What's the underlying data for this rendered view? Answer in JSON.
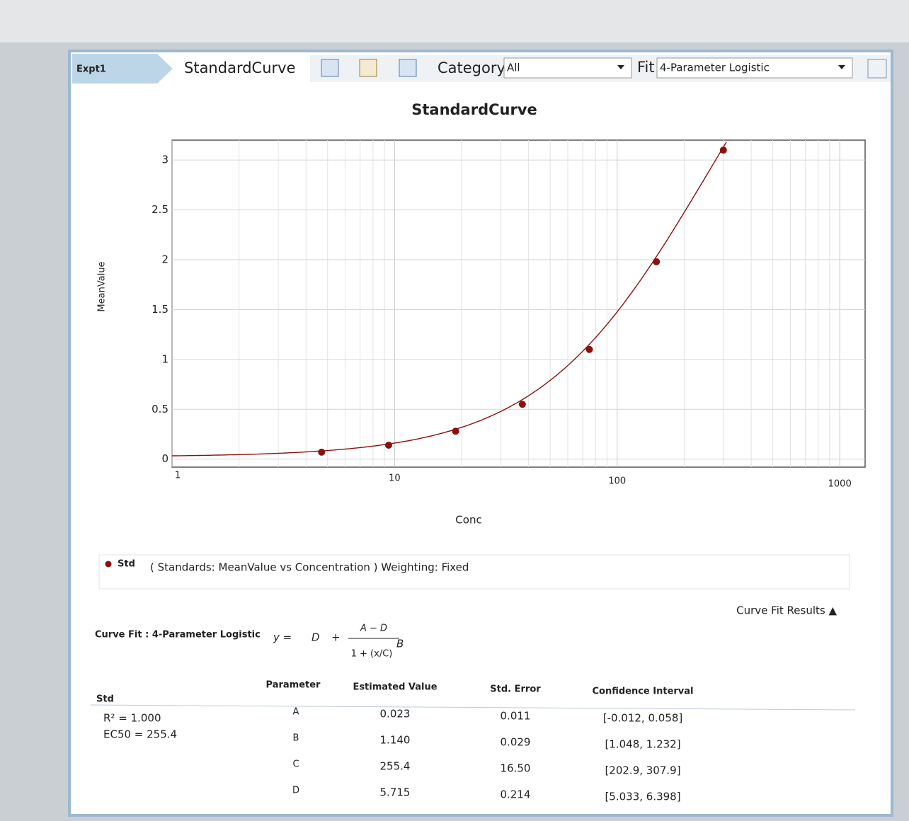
{
  "toolbar": {
    "experiment": "Expt1",
    "view": "StandardCurve",
    "category_label": "Category",
    "category_value": "All",
    "fit_label": "Fit",
    "fit_value": "4-Parameter Logistic"
  },
  "chart_data": {
    "type": "scatter",
    "title": "StandardCurve",
    "x_label": "Conc",
    "y_label": "MeanValue",
    "x_scale": "log",
    "grid": true,
    "xlim": [
      1,
      1300
    ],
    "ylim": [
      -0.08,
      3.2
    ],
    "xticks": [
      1,
      10,
      100,
      1000
    ],
    "xminor": [
      2,
      3,
      4,
      5,
      6,
      7,
      8,
      9,
      20,
      30,
      40,
      50,
      60,
      70,
      80,
      90,
      200,
      300,
      400,
      500,
      600,
      700,
      800,
      900
    ],
    "yticks": [
      0,
      0.5,
      1,
      1.5,
      2,
      2.5,
      3
    ],
    "series": [
      {
        "name": "Std",
        "color": "#8b1010",
        "x": [
          4.7,
          9.4,
          18.8,
          37.5,
          75,
          150,
          300
        ],
        "values": [
          0.07,
          0.14,
          0.28,
          0.55,
          1.1,
          1.98,
          3.1
        ]
      }
    ]
  },
  "legend": {
    "description": "( Standards: MeanValue vs Concentration ) Weighting: Fixed"
  },
  "results": {
    "toggle": "Curve Fit Results ▲",
    "fit_title": "Curve Fit : 4-Parameter Logistic",
    "equation": {
      "lhs": "y =",
      "d": "D",
      "plus": "+",
      "numerator": "A − D",
      "denominator": "1 + (x/C)",
      "exponent": "B"
    },
    "group": "Std",
    "r_squared": "R² = 1.000",
    "ec50": "EC50 = 255.4",
    "headers": [
      "Parameter",
      "Estimated Value",
      "Std. Error",
      "Confidence Interval"
    ],
    "rows": [
      [
        "A",
        "0.023",
        "0.011",
        "[-0.012, 0.058]"
      ],
      [
        "B",
        "1.140",
        "0.029",
        "[1.048, 1.232]"
      ],
      [
        "C",
        "255.4",
        "16.50",
        "[202.9, 307.9]"
      ],
      [
        "D",
        "5.715",
        "0.214",
        "[5.033, 6.398]"
      ]
    ]
  }
}
